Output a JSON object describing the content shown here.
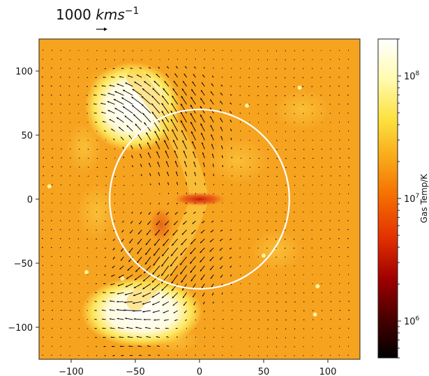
{
  "chart_data": {
    "type": "heatmap",
    "title": "",
    "xlabel": "",
    "ylabel": "",
    "xlim": [
      -125,
      125
    ],
    "ylim": [
      -125,
      125
    ],
    "x_ticks": [
      -100,
      -50,
      0,
      50,
      100
    ],
    "y_ticks": [
      100,
      50,
      0,
      -50,
      -100
    ],
    "x_tick_labels": [
      "−100",
      "−50",
      "0",
      "50",
      "100"
    ],
    "y_tick_labels": [
      "100",
      "50",
      "0",
      "−50",
      "−100"
    ],
    "grid": false,
    "overlay_circle": {
      "center": [
        0,
        0
      ],
      "radius": 70,
      "color": "#ffffff"
    },
    "velocity_field": {
      "type": "quiver",
      "scale_key_value": 1000,
      "scale_key_label_value": "1000",
      "scale_key_label_unit_italic": "kms",
      "scale_key_label_exponent": "−1",
      "arrow_color": "#000000"
    },
    "hot_regions": [
      {
        "name": "north-lobe",
        "center": [
          -52,
          72
        ],
        "extent": [
          30,
          28
        ]
      },
      {
        "name": "south-lobe",
        "center": [
          -45,
          -88
        ],
        "extent": [
          38,
          22
        ]
      }
    ],
    "colorbar": {
      "label": "Gas Temp/K",
      "scale": "log",
      "range": [
        500000,
        200000000
      ],
      "ticks": [
        {
          "value": 1000000,
          "base": "10",
          "exp": "6"
        },
        {
          "value": 10000000,
          "base": "10",
          "exp": "7"
        },
        {
          "value": 100000000,
          "base": "10",
          "exp": "8"
        }
      ],
      "colormap": [
        "#000000",
        "#4a0000",
        "#a00000",
        "#e23000",
        "#f56a00",
        "#f9a818",
        "#fce240",
        "#fffbb0",
        "#ffffff"
      ]
    },
    "colors": {
      "background": "#f6a320",
      "hot": "#ffffff",
      "warm": "#fde65a",
      "cool_core": "#d92a10"
    }
  }
}
